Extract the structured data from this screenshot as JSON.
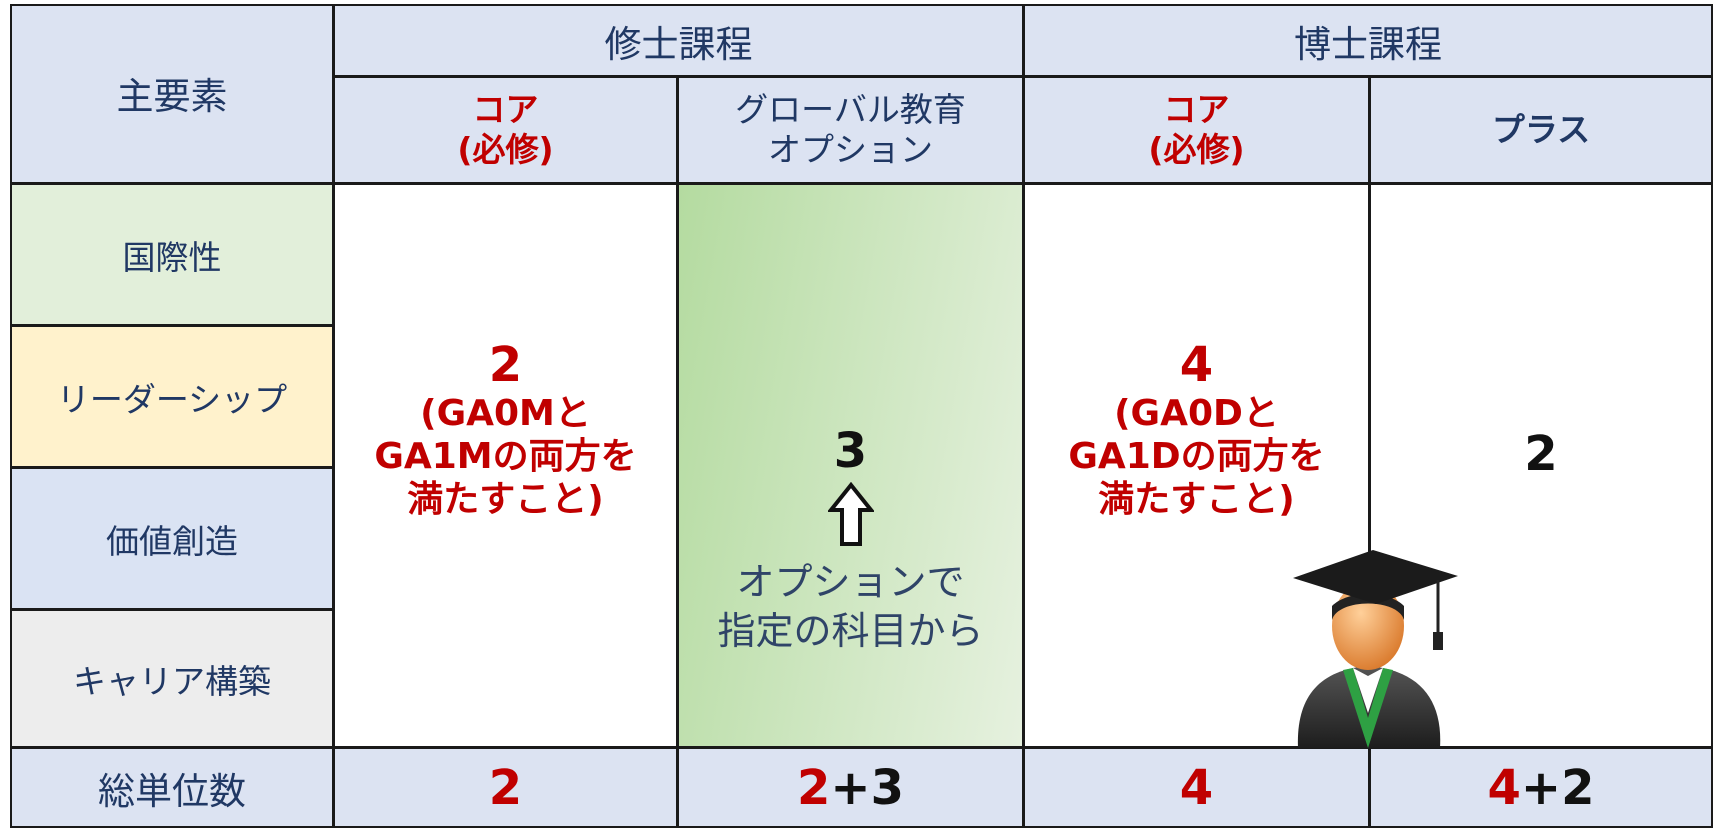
{
  "header": {
    "corner": "主要素",
    "masters": "修士課程",
    "doctoral": "博士課程",
    "subcolumns": [
      [
        "コア",
        "(必修)"
      ],
      [
        "グローバル教育",
        "オプション"
      ],
      [
        "コア",
        "(必修)"
      ],
      [
        "プラス"
      ]
    ]
  },
  "rows": [
    "国際性",
    "リーダーシップ",
    "価値創造",
    "キャリア構築"
  ],
  "cells": [
    {
      "number": "2",
      "note": [
        "(GA0Mと",
        "GA1Mの両方を",
        "満たすこと)"
      ]
    },
    {
      "number": "3",
      "note": [
        "オプションで",
        "指定の科目から"
      ]
    },
    {
      "number": "4",
      "note": [
        "(GA0Dと",
        "GA1Dの両方を",
        "満たすこと)"
      ]
    },
    {
      "number": "2"
    }
  ],
  "total_label": "総単位数",
  "totals": [
    [
      "2"
    ],
    [
      "2",
      "+3"
    ],
    [
      "4"
    ],
    [
      "4",
      "+2"
    ]
  ]
}
